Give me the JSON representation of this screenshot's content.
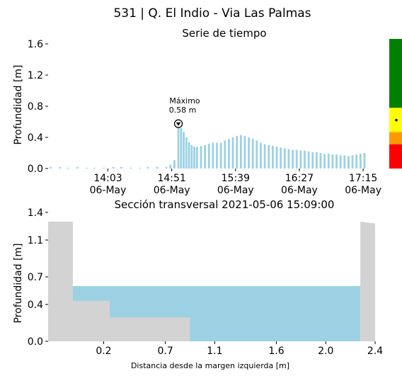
{
  "figure": {
    "title": "531 | Q. El Indio - Via Las Palmas"
  },
  "chart_data": [
    {
      "type": "bar",
      "title": "Serie de tiempo",
      "xlabel": "",
      "ylabel": "Profundidad [m]",
      "ylim": [
        0.0,
        1.6
      ],
      "y_ticks": [
        0.0,
        0.4,
        0.8,
        1.2,
        1.6
      ],
      "y_tick_labels": [
        "0.0",
        "0.4",
        "0.8",
        "1.2",
        "1.6"
      ],
      "x_range_minutes": [
        13.3,
        17.4
      ],
      "x_ticks": [
        {
          "time": "14:03",
          "date": "06-May"
        },
        {
          "time": "14:51",
          "date": "06-May"
        },
        {
          "time": "15:39",
          "date": "06-May"
        },
        {
          "time": "16:27",
          "date": "06-May"
        },
        {
          "time": "17:15",
          "date": "06-May"
        }
      ],
      "bar_color": "#9bd1e3",
      "annotation": {
        "label": "Máximo",
        "value_label": "0.58 m",
        "time": "14:56",
        "value": 0.58
      },
      "series": [
        {
          "points": [
            [
              "13:20",
              0.02
            ],
            [
              "13:27",
              0.02
            ],
            [
              "13:33",
              0.01
            ],
            [
              "13:40",
              0.02
            ],
            [
              "13:47",
              0.01
            ],
            [
              "13:53",
              0.01
            ],
            [
              "14:00",
              0.01
            ],
            [
              "14:07",
              0.02
            ],
            [
              "14:13",
              0.02
            ],
            [
              "14:20",
              0.01
            ],
            [
              "14:27",
              0.01
            ],
            [
              "14:33",
              0.02
            ],
            [
              "14:40",
              0.02
            ],
            [
              "14:47",
              0.02
            ],
            [
              "14:50",
              0.05
            ],
            [
              "14:53",
              0.11
            ],
            [
              "14:56",
              0.58
            ],
            [
              "14:58",
              0.52
            ],
            [
              "15:00",
              0.47
            ],
            [
              "15:02",
              0.4
            ],
            [
              "15:04",
              0.34
            ],
            [
              "15:06",
              0.3
            ],
            [
              "15:08",
              0.28
            ],
            [
              "15:10",
              0.28
            ],
            [
              "15:13",
              0.29
            ],
            [
              "15:16",
              0.3
            ],
            [
              "15:19",
              0.32
            ],
            [
              "15:22",
              0.33
            ],
            [
              "15:25",
              0.33
            ],
            [
              "15:28",
              0.33
            ],
            [
              "15:31",
              0.36
            ],
            [
              "15:34",
              0.38
            ],
            [
              "15:37",
              0.4
            ],
            [
              "15:40",
              0.42
            ],
            [
              "15:43",
              0.43
            ],
            [
              "15:46",
              0.42
            ],
            [
              "15:49",
              0.4
            ],
            [
              "15:52",
              0.38
            ],
            [
              "15:55",
              0.36
            ],
            [
              "15:58",
              0.33
            ],
            [
              "16:01",
              0.31
            ],
            [
              "16:04",
              0.3
            ],
            [
              "16:07",
              0.29
            ],
            [
              "16:10",
              0.28
            ],
            [
              "16:13",
              0.27
            ],
            [
              "16:16",
              0.26
            ],
            [
              "16:19",
              0.25
            ],
            [
              "16:22",
              0.24
            ],
            [
              "16:25",
              0.24
            ],
            [
              "16:28",
              0.23
            ],
            [
              "16:31",
              0.23
            ],
            [
              "16:34",
              0.22
            ],
            [
              "16:37",
              0.21
            ],
            [
              "16:40",
              0.21
            ],
            [
              "16:43",
              0.2
            ],
            [
              "16:46",
              0.19
            ],
            [
              "16:49",
              0.19
            ],
            [
              "16:52",
              0.18
            ],
            [
              "16:55",
              0.18
            ],
            [
              "16:58",
              0.17
            ],
            [
              "17:01",
              0.17
            ],
            [
              "17:04",
              0.16
            ],
            [
              "17:07",
              0.17
            ],
            [
              "17:10",
              0.18
            ],
            [
              "17:13",
              0.19
            ],
            [
              "17:16",
              0.2
            ]
          ]
        }
      ],
      "alert_scale": {
        "colors": [
          "#ff0000",
          "#ff9900",
          "#ffff00",
          "#008000"
        ],
        "bounds": [
          [
            0.0,
            0.3
          ],
          [
            0.3,
            0.45
          ],
          [
            0.45,
            0.75
          ],
          [
            0.75,
            1.6
          ]
        ],
        "current_value": 0.58
      }
    },
    {
      "type": "area",
      "title": "Sección transversal 2021-05-06 15:09:00",
      "xlabel": "Distancia desde la margen izquierda [m]",
      "ylabel": "Profundidad [m]",
      "xlim": [
        -0.25,
        2.4
      ],
      "ylim": [
        0.0,
        1.4
      ],
      "x_ticks": [
        0.2,
        0.7,
        1.1,
        1.6,
        2.0,
        2.4
      ],
      "x_tick_labels": [
        "0.2",
        "0.7",
        "1.1",
        "1.6",
        "2.0",
        "2.4"
      ],
      "y_ticks": [
        0.0,
        0.4,
        0.7,
        1.1,
        1.4
      ],
      "y_tick_labels": [
        "0.0",
        "0.4",
        "0.7",
        "1.1",
        "1.4"
      ],
      "bed_color": "#d3d3d3",
      "water_color": "#9bd1e3",
      "bed_profile": [
        [
          -0.25,
          1.3
        ],
        [
          -0.05,
          1.3
        ],
        [
          -0.05,
          0.44
        ],
        [
          0.25,
          0.44
        ],
        [
          0.25,
          0.26
        ],
        [
          0.9,
          0.26
        ],
        [
          0.9,
          0.0
        ],
        [
          2.28,
          0.0
        ],
        [
          2.28,
          1.3
        ],
        [
          2.4,
          1.28
        ]
      ],
      "water_level": 0.6,
      "water_x_range": [
        -0.05,
        2.28
      ]
    }
  ]
}
